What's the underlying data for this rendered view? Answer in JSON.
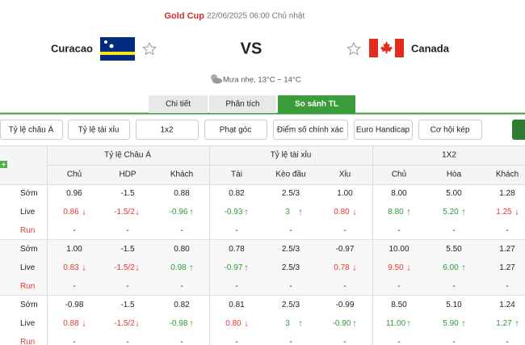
{
  "header": {
    "league": "Gold Cup",
    "datetime": "22/06/2025 06:00 Chủ nhật",
    "home": "Curacao",
    "vs": "VS",
    "away": "Canada",
    "weather": "Mưa nhẹ, 13°C ~ 14°C"
  },
  "tabs": [
    "Chi tiết",
    "Phân tích",
    "So sánh TL"
  ],
  "buttons": [
    "Tỷ lệ châu Á",
    "Tỷ lệ tài xỉu",
    "1x2",
    "Phạt góc",
    "Điểm số chính xác",
    "Euro Handicap",
    "Cơ hội kép"
  ],
  "table": {
    "groups": [
      "Tỷ lệ Châu Á",
      "Tỷ lệ tài xỉu",
      "1X2"
    ],
    "columns": [
      "Chủ",
      "HDP",
      "Khách",
      "Tài",
      "Kèo đầu",
      "Xỉu",
      "Chủ",
      "Hòa",
      "Khách"
    ],
    "matches": [
      {
        "rows": [
          {
            "label": "Sớm",
            "cells": [
              "0.96",
              "-1.5",
              "0.88",
              "0.82",
              "2.5/3",
              "1.00",
              "8.00",
              "5.00",
              "1.28"
            ]
          },
          {
            "label": "Live",
            "cells": [
              {
                "v": "0.86",
                "t": "down"
              },
              {
                "v": "-1.5/2",
                "t": "down"
              },
              {
                "v": "-0.96",
                "t": "up"
              },
              {
                "v": "-0.93",
                "t": "up"
              },
              {
                "v": "3",
                "t": "up"
              },
              {
                "v": "0.80",
                "t": "down"
              },
              {
                "v": "8.80",
                "t": "up"
              },
              {
                "v": "5.20",
                "t": "up"
              },
              {
                "v": "1.25",
                "t": "down"
              }
            ]
          },
          {
            "label": "Run",
            "cells": [
              "-",
              "-",
              "-",
              "-",
              "-",
              "-",
              "-",
              "-",
              "-"
            ]
          }
        ]
      },
      {
        "rows": [
          {
            "label": "Sớm",
            "cells": [
              "1.00",
              "-1.5",
              "0.80",
              "0.78",
              "2.5/3",
              "-0.97",
              "10.00",
              "5.50",
              "1.27"
            ]
          },
          {
            "label": "Live",
            "cells": [
              {
                "v": "0.83",
                "t": "down"
              },
              {
                "v": "-1.5/2",
                "t": "down"
              },
              {
                "v": "0.98",
                "t": "up"
              },
              {
                "v": "-0.97",
                "t": "up"
              },
              "2.5/3",
              {
                "v": "0.78",
                "t": "down"
              },
              {
                "v": "9.50",
                "t": "down"
              },
              {
                "v": "6.00",
                "t": "up"
              },
              "1.27"
            ]
          },
          {
            "label": "Run",
            "cells": [
              "-",
              "-",
              "-",
              "-",
              "-",
              "-",
              "-",
              "-",
              "-"
            ]
          }
        ]
      },
      {
        "rows": [
          {
            "label": "Sớm",
            "cells": [
              "-0.98",
              "-1.5",
              "0.82",
              "0.81",
              "2.5/3",
              "-0.99",
              "8.50",
              "5.10",
              "1.24"
            ]
          },
          {
            "label": "Live",
            "cells": [
              {
                "v": "0.88",
                "t": "down"
              },
              {
                "v": "-1.5/2",
                "t": "down"
              },
              {
                "v": "-0.98",
                "t": "up"
              },
              {
                "v": "0.80",
                "t": "down"
              },
              {
                "v": "3",
                "t": "up"
              },
              {
                "v": "-0.90",
                "t": "up"
              },
              {
                "v": "11.00",
                "t": "up"
              },
              {
                "v": "5.90",
                "t": "up"
              },
              {
                "v": "1.27",
                "t": "up"
              }
            ]
          },
          {
            "label": "Run",
            "cells": [
              "-",
              "-",
              "-",
              "-",
              "-",
              "-",
              "-",
              "-",
              "-"
            ]
          }
        ]
      }
    ]
  }
}
